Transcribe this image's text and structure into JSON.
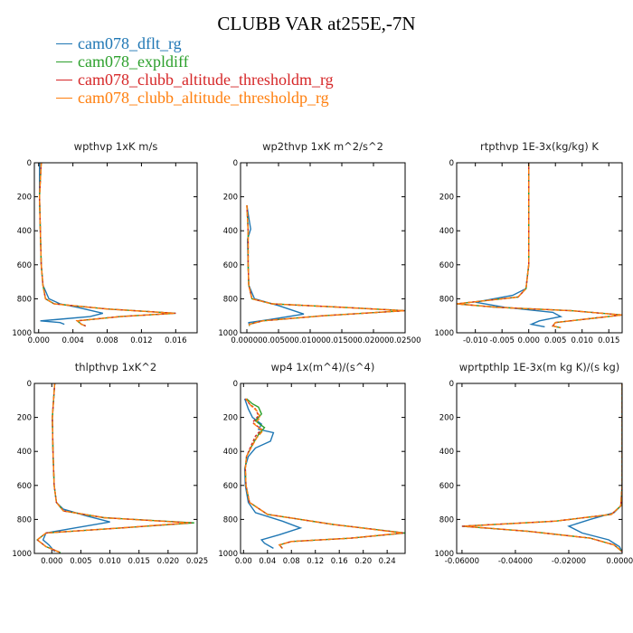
{
  "title": "CLUBB VAR at255E,-7N",
  "legend": [
    {
      "name": "cam078_dflt_rg",
      "color": "#1f77b4"
    },
    {
      "name": "cam078_expldiff",
      "color": "#2ca02c"
    },
    {
      "name": "cam078_clubb_altitude_thresholdm_rg",
      "color": "#d62728"
    },
    {
      "name": "cam078_clubb_altitude_thresholdp_rg",
      "color": "#ff7f0e"
    }
  ],
  "chart_data": [
    {
      "type": "line",
      "title": "wpthvp  1xK m/s",
      "xlim": [
        -0.0005,
        0.0185
      ],
      "ylim": [
        1000,
        0
      ],
      "xticks": [
        0.0,
        0.004,
        0.008,
        0.012,
        0.016
      ],
      "xtick_labels": [
        "0.000",
        "0.004",
        "0.008",
        "0.012",
        "0.016"
      ],
      "yticks": [
        0,
        200,
        400,
        600,
        800,
        1000
      ],
      "series": [
        {
          "name": "cam078_dflt_rg",
          "x": [
            0.0001,
            0.0001,
            0.0002,
            0.0003,
            0.0005,
            0.0012,
            0.0025,
            0.0045,
            0.0075,
            0.006,
            0.0025,
            0.0002,
            0.0025,
            0.003
          ],
          "y": [
            0,
            200,
            400,
            600,
            720,
            800,
            830,
            850,
            885,
            905,
            920,
            930,
            940,
            950
          ]
        },
        {
          "name": "cam078_expldiff",
          "x": [
            0.0003,
            0.0001,
            0.0002,
            0.0003,
            0.0005,
            0.0008,
            0.0018,
            0.008,
            0.016,
            0.0095,
            0.0045,
            0.005,
            0.0055
          ],
          "y": [
            0,
            200,
            400,
            600,
            720,
            800,
            830,
            860,
            885,
            905,
            930,
            950,
            960
          ]
        },
        {
          "name": "cam078_clubb_altitude_thresholdm_rg",
          "x": [
            0.0003,
            0.0001,
            0.0002,
            0.0003,
            0.0005,
            0.0008,
            0.0018,
            0.008,
            0.016,
            0.0095,
            0.0045,
            0.005,
            0.0055
          ],
          "y": [
            0,
            200,
            400,
            600,
            720,
            800,
            830,
            860,
            885,
            905,
            930,
            950,
            960
          ]
        },
        {
          "name": "cam078_clubb_altitude_thresholdp_rg",
          "x": [
            0.0003,
            0.0001,
            0.0002,
            0.0003,
            0.0005,
            0.0008,
            0.0018,
            0.008,
            0.0158,
            0.0095,
            0.0045,
            0.005,
            0.0055
          ],
          "y": [
            0,
            200,
            400,
            600,
            720,
            800,
            830,
            860,
            885,
            905,
            930,
            950,
            960
          ]
        }
      ]
    },
    {
      "type": "line",
      "title": "wp2thvp  1xK m^2/s^2",
      "xlim": [
        -0.001,
        0.025
      ],
      "ylim": [
        1000,
        0
      ],
      "xticks": [
        0.0,
        0.005,
        0.01,
        0.015,
        0.02,
        0.025
      ],
      "xtick_labels": [
        "0.00000",
        "0.00500",
        "0.01000",
        "0.01500",
        "0.02000",
        "0.02500"
      ],
      "yticks": [
        0,
        200,
        400,
        600,
        800,
        1000
      ],
      "series": [
        {
          "name": "cam078_dflt_rg",
          "x": [
            0.0,
            0.0002,
            0.0006,
            0.0001,
            0.0002,
            0.0003,
            0.0012,
            0.005,
            0.009,
            0.004,
            0.0003,
            0.0004
          ],
          "y": [
            250,
            300,
            390,
            450,
            600,
            720,
            800,
            840,
            890,
            920,
            940,
            960
          ]
        },
        {
          "name": "cam078_expldiff",
          "x": [
            0.0,
            0.0002,
            0.0002,
            0.0003,
            0.0008,
            0.004,
            0.015,
            0.025,
            0.012,
            0.0025,
            0.0004,
            0.0004
          ],
          "y": [
            250,
            400,
            600,
            720,
            800,
            830,
            850,
            870,
            900,
            930,
            950,
            960
          ]
        },
        {
          "name": "cam078_clubb_altitude_thresholdm_rg",
          "x": [
            0.0,
            0.0002,
            0.0002,
            0.0003,
            0.0008,
            0.004,
            0.015,
            0.025,
            0.012,
            0.0025,
            0.0004,
            0.0004
          ],
          "y": [
            250,
            400,
            600,
            720,
            800,
            830,
            850,
            870,
            900,
            930,
            950,
            960
          ]
        },
        {
          "name": "cam078_clubb_altitude_thresholdp_rg",
          "x": [
            0.0,
            0.0002,
            0.0002,
            0.0003,
            0.0008,
            0.004,
            0.015,
            0.0248,
            0.012,
            0.0025,
            0.0004,
            0.0004
          ],
          "y": [
            250,
            400,
            600,
            720,
            800,
            830,
            850,
            870,
            900,
            930,
            950,
            960
          ]
        }
      ]
    },
    {
      "type": "line",
      "title": "rtpthvp  1E-3x(kg/kg) K",
      "xlim": [
        -0.0135,
        0.0175
      ],
      "ylim": [
        1000,
        0
      ],
      "xticks": [
        -0.01,
        -0.005,
        0.0,
        0.005,
        0.01,
        0.015
      ],
      "xtick_labels": [
        "-0.010",
        "-0.005",
        "0.000",
        "0.005",
        "0.010",
        "0.015"
      ],
      "yticks": [
        0,
        200,
        400,
        600,
        800,
        1000
      ],
      "series": [
        {
          "name": "cam078_dflt_rg",
          "x": [
            0.0,
            0.0,
            0.0,
            0.0,
            -0.0005,
            -0.003,
            -0.01,
            -0.0045,
            0.0045,
            0.006,
            0.002,
            0.0005,
            0.003
          ],
          "y": [
            0,
            200,
            400,
            600,
            740,
            780,
            820,
            850,
            880,
            905,
            930,
            950,
            965
          ]
        },
        {
          "name": "cam078_expldiff",
          "x": [
            0.0,
            0.0,
            0.0,
            0.0,
            -0.0005,
            -0.002,
            -0.0135,
            -0.006,
            0.008,
            0.0175,
            0.012,
            0.005,
            0.0045,
            0.006
          ],
          "y": [
            0,
            200,
            400,
            600,
            740,
            790,
            830,
            850,
            870,
            895,
            915,
            940,
            960,
            970
          ]
        },
        {
          "name": "cam078_clubb_altitude_thresholdm_rg",
          "x": [
            0.0,
            0.0,
            0.0,
            0.0,
            -0.0005,
            -0.002,
            -0.0135,
            -0.006,
            0.008,
            0.0175,
            0.012,
            0.005,
            0.0045,
            0.006
          ],
          "y": [
            0,
            200,
            400,
            600,
            740,
            790,
            830,
            850,
            870,
            895,
            915,
            940,
            960,
            970
          ]
        },
        {
          "name": "cam078_clubb_altitude_thresholdp_rg",
          "x": [
            0.0,
            0.0,
            0.0,
            0.0,
            -0.0005,
            -0.002,
            -0.0135,
            -0.006,
            0.008,
            0.0175,
            0.012,
            0.005,
            0.0045,
            0.006
          ],
          "y": [
            0,
            200,
            400,
            600,
            740,
            790,
            830,
            850,
            870,
            895,
            915,
            940,
            960,
            970
          ]
        }
      ]
    },
    {
      "type": "line",
      "title": "thlpthvp  1xK^2",
      "xlim": [
        -0.003,
        0.025
      ],
      "ylim": [
        1000,
        0
      ],
      "xticks": [
        0.0,
        0.005,
        0.01,
        0.015,
        0.02,
        0.025
      ],
      "xtick_labels": [
        "0.000",
        "0.005",
        "0.010",
        "0.015",
        "0.020",
        "0.025"
      ],
      "yticks": [
        0,
        200,
        400,
        600,
        800,
        1000
      ],
      "series": [
        {
          "name": "cam078_dflt_rg",
          "x": [
            0.0005,
            0.0001,
            0.0002,
            0.0004,
            0.0008,
            0.002,
            0.006,
            0.01,
            0.004,
            -0.001,
            -0.0015,
            -0.0005,
            0.0005
          ],
          "y": [
            0,
            200,
            400,
            600,
            700,
            740,
            780,
            815,
            850,
            880,
            920,
            950,
            990
          ]
        },
        {
          "name": "cam078_expldiff",
          "x": [
            0.0005,
            0.0001,
            0.0002,
            0.0004,
            0.0008,
            0.002,
            0.009,
            0.0245,
            0.012,
            -0.001,
            -0.0025,
            -0.001,
            0.0015
          ],
          "y": [
            0,
            200,
            400,
            600,
            700,
            750,
            790,
            820,
            850,
            880,
            920,
            960,
            995
          ]
        },
        {
          "name": "cam078_clubb_altitude_thresholdm_rg",
          "x": [
            0.0005,
            0.0001,
            0.0002,
            0.0004,
            0.0008,
            0.002,
            0.009,
            0.024,
            0.012,
            -0.001,
            -0.0025,
            -0.001,
            0.0015
          ],
          "y": [
            0,
            200,
            400,
            600,
            700,
            750,
            790,
            820,
            850,
            880,
            920,
            960,
            995
          ]
        },
        {
          "name": "cam078_clubb_altitude_thresholdp_rg",
          "x": [
            0.0005,
            0.0001,
            0.0002,
            0.0004,
            0.0008,
            0.002,
            0.009,
            0.0235,
            0.012,
            -0.001,
            -0.0025,
            -0.001,
            0.0015
          ],
          "y": [
            0,
            200,
            400,
            600,
            700,
            750,
            790,
            820,
            850,
            880,
            920,
            960,
            995
          ]
        }
      ]
    },
    {
      "type": "line",
      "title": "wp4  1x(m^4)/(s^4)",
      "xlim": [
        -0.005,
        0.27
      ],
      "ylim": [
        1000,
        0
      ],
      "xticks": [
        0.0,
        0.04,
        0.08,
        0.12,
        0.16,
        0.2,
        0.24
      ],
      "xtick_labels": [
        "0.00",
        "0.04",
        "0.08",
        "0.12",
        "0.16",
        "0.20",
        "0.24"
      ],
      "yticks": [
        0,
        200,
        400,
        600,
        800,
        1000
      ],
      "series": [
        {
          "name": "cam078_dflt_rg",
          "x": [
            0.002,
            0.008,
            0.015,
            0.03,
            0.025,
            0.05,
            0.045,
            0.02,
            0.008,
            0.002,
            0.003,
            0.008,
            0.02,
            0.065,
            0.095,
            0.06,
            0.03,
            0.035,
            0.05
          ],
          "y": [
            90,
            150,
            200,
            240,
            270,
            290,
            340,
            380,
            430,
            500,
            600,
            700,
            760,
            810,
            850,
            890,
            920,
            940,
            970
          ]
        },
        {
          "name": "cam078_expldiff",
          "x": [
            0.005,
            0.015,
            0.025,
            0.03,
            0.02,
            0.035,
            0.025,
            0.015,
            0.005,
            0.003,
            0.004,
            0.01,
            0.04,
            0.15,
            0.27,
            0.18,
            0.08,
            0.06,
            0.065
          ],
          "y": [
            90,
            120,
            140,
            180,
            220,
            260,
            300,
            360,
            430,
            500,
            600,
            700,
            770,
            830,
            880,
            910,
            930,
            950,
            970
          ]
        },
        {
          "name": "cam078_clubb_altitude_thresholdm_rg",
          "x": [
            0.003,
            0.01,
            0.02,
            0.025,
            0.015,
            0.03,
            0.02,
            0.012,
            0.005,
            0.003,
            0.004,
            0.01,
            0.04,
            0.15,
            0.268,
            0.18,
            0.08,
            0.06,
            0.065
          ],
          "y": [
            90,
            120,
            150,
            190,
            230,
            270,
            310,
            370,
            430,
            500,
            600,
            700,
            770,
            830,
            880,
            910,
            930,
            950,
            970
          ]
        },
        {
          "name": "cam078_clubb_altitude_thresholdp_rg",
          "x": [
            0.004,
            0.012,
            0.022,
            0.028,
            0.018,
            0.032,
            0.022,
            0.014,
            0.005,
            0.003,
            0.004,
            0.01,
            0.04,
            0.15,
            0.265,
            0.18,
            0.08,
            0.06,
            0.065
          ],
          "y": [
            90,
            130,
            160,
            200,
            240,
            280,
            320,
            370,
            430,
            500,
            600,
            700,
            770,
            830,
            880,
            910,
            930,
            950,
            970
          ]
        }
      ]
    },
    {
      "type": "line",
      "title": "wprtpthlp  1E-3x(m kg K)/(s kg)",
      "xlim": [
        -0.062,
        0.0
      ],
      "ylim": [
        1000,
        0
      ],
      "xticks": [
        -0.06,
        -0.04,
        -0.02,
        0.0
      ],
      "xtick_labels": [
        "-0.06000",
        "-0.04000",
        "-0.02000",
        "0.00000"
      ],
      "yticks": [
        0,
        200,
        400,
        600,
        800,
        1000
      ],
      "series": [
        {
          "name": "cam078_dflt_rg",
          "x": [
            0.0,
            0.0,
            0.0,
            0.0,
            -0.0005,
            -0.003,
            -0.012,
            -0.02,
            -0.015,
            -0.005,
            -0.001,
            0.0
          ],
          "y": [
            0,
            200,
            400,
            600,
            720,
            760,
            800,
            840,
            880,
            920,
            960,
            990
          ]
        },
        {
          "name": "cam078_expldiff",
          "x": [
            0.0,
            0.0,
            0.0,
            0.0,
            -0.0005,
            -0.004,
            -0.025,
            -0.06,
            -0.035,
            -0.012,
            -0.003,
            0.0
          ],
          "y": [
            0,
            200,
            400,
            600,
            720,
            770,
            810,
            840,
            870,
            910,
            950,
            990
          ]
        },
        {
          "name": "cam078_clubb_altitude_thresholdm_rg",
          "x": [
            0.0,
            0.0,
            0.0,
            0.0,
            -0.0005,
            -0.004,
            -0.025,
            -0.06,
            -0.035,
            -0.012,
            -0.003,
            0.0
          ],
          "y": [
            0,
            200,
            400,
            600,
            720,
            770,
            810,
            840,
            870,
            910,
            950,
            990
          ]
        },
        {
          "name": "cam078_clubb_altitude_thresholdp_rg",
          "x": [
            0.0,
            0.0,
            0.0,
            0.0,
            -0.0005,
            -0.004,
            -0.025,
            -0.059,
            -0.035,
            -0.012,
            -0.003,
            0.0
          ],
          "y": [
            0,
            200,
            400,
            600,
            720,
            770,
            810,
            840,
            870,
            910,
            950,
            990
          ]
        }
      ]
    }
  ]
}
